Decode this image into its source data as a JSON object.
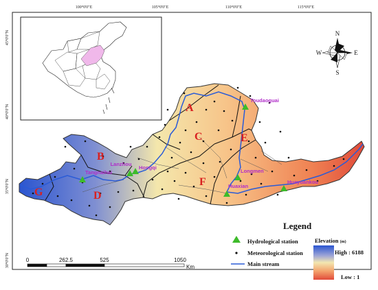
{
  "lon_labels": [
    "100°0'0\"E",
    "105°0'0\"E",
    "110°0'0\"E",
    "115°0'0\"E"
  ],
  "lat_labels": [
    "45°0'0\"N",
    "40°0'0\"N",
    "35°0'0\"N",
    "30°0'0\"N"
  ],
  "regions": [
    "A",
    "B",
    "C",
    "D",
    "E",
    "F",
    "G"
  ],
  "stations": {
    "toudaoguai": "Toudaoguai",
    "lanzhou": "Lanzhou",
    "longmen": "Longmen",
    "huaxian": "Huaxian",
    "huayuankou": "Huayuankou",
    "tangnaihai": "Tangnaihai",
    "hongqi": "Hongqi"
  },
  "legend": {
    "title": "Legend",
    "hydro": "Hydrological station",
    "meteo": "Meteorological station",
    "stream": "Main stream",
    "elevation": "Elevation",
    "elevation_unit": "(m)",
    "high": "High : 6188",
    "low": "Low : 1"
  },
  "compass": {
    "n": "N",
    "s": "S",
    "e": "E",
    "w": "W"
  },
  "scale": {
    "ticks": [
      "0",
      "262.5",
      "525",
      "1050"
    ],
    "unit": "Km"
  },
  "colors": {
    "high": "#2d62d6",
    "mid": "#f2e2a2",
    "low": "#e24a3a",
    "hydro": "#3dbb2a",
    "stream": "#2a5bd7",
    "region_label": "#d92020",
    "station_label": "#b02cc9",
    "inset_highlight": "#f0b8ea"
  }
}
